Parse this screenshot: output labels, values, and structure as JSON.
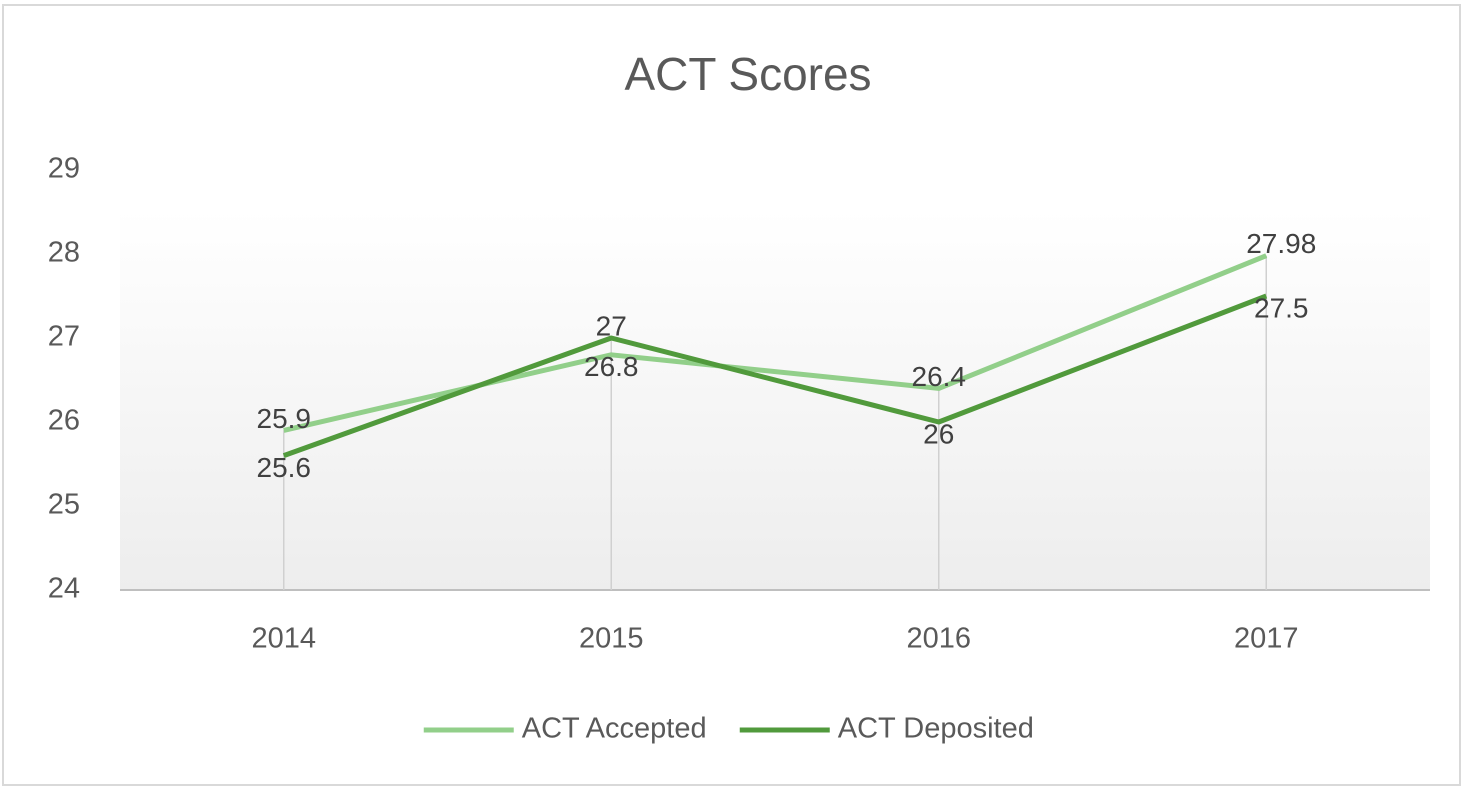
{
  "chart_data": {
    "type": "line",
    "title": "ACT Scores",
    "categories": [
      "2014",
      "2015",
      "2016",
      "2017"
    ],
    "series": [
      {
        "name": "ACT Accepted",
        "color": "#92cf8a",
        "values": [
          25.9,
          26.8,
          26.4,
          27.98
        ]
      },
      {
        "name": "ACT Deposited",
        "color": "#519a3c",
        "values": [
          25.6,
          27,
          26,
          27.5
        ]
      }
    ],
    "ylim": [
      24,
      29
    ],
    "yticks": [
      24,
      25,
      26,
      27,
      28,
      29
    ],
    "grid": false,
    "legend": "bottom"
  }
}
